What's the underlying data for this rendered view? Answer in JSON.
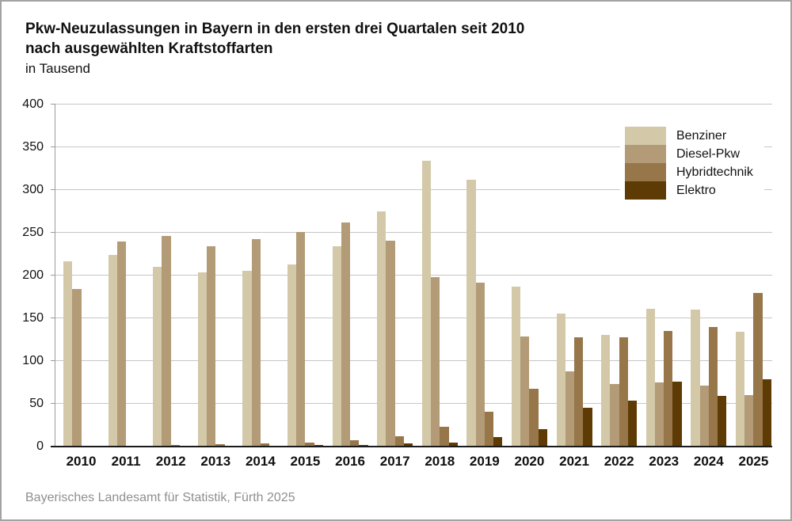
{
  "title": {
    "line1": "Pkw-Neuzulassungen in Bayern in den ersten drei Quartalen seit 2010",
    "line2": "nach ausgewählten Kraftstoffarten",
    "unit_line": "in Tausend"
  },
  "footer": "Bayerisches Landesamt für Statistik, Fürth 2025",
  "colors": {
    "benziner": "#d3c9a9",
    "diesel": "#b29b76",
    "hybrid": "#97764a",
    "elektro": "#5e3a04",
    "gridline": "#c6c6c6",
    "axis": "#9a9a9a",
    "baseline": "#1a1a1a",
    "footer_text": "#8f8f8f"
  },
  "chart_data": {
    "type": "bar",
    "title": "Pkw-Neuzulassungen in Bayern in den ersten drei Quartalen seit 2010 nach ausgewählten Kraftstoffarten",
    "subtitle": "in Tausend",
    "xlabel": "",
    "ylabel": "in Tausend",
    "ylim": [
      0,
      400
    ],
    "ytick_step": 50,
    "yticks": [
      0,
      50,
      100,
      150,
      200,
      250,
      300,
      350,
      400
    ],
    "grid": true,
    "legend_position": "top-right",
    "categories": [
      "2010",
      "2011",
      "2012",
      "2013",
      "2014",
      "2015",
      "2016",
      "2017",
      "2018",
      "2019",
      "2020",
      "2021",
      "2022",
      "2023",
      "2024",
      "2025"
    ],
    "series": [
      {
        "name": "Benziner",
        "color": "#d3c9a9",
        "values": [
          217,
          224,
          210,
          204,
          206,
          213,
          234,
          275,
          334,
          312,
          187,
          156,
          131,
          161,
          160,
          134
        ]
      },
      {
        "name": "Diesel-Pkw",
        "color": "#b29b76",
        "values": [
          184,
          240,
          246,
          234,
          243,
          251,
          262,
          241,
          198,
          192,
          129,
          88,
          73,
          75,
          71,
          60
        ]
      },
      {
        "name": "Hybridtechnik",
        "color": "#97764a",
        "values": [
          null,
          null,
          2,
          3,
          4,
          5,
          7,
          12,
          23,
          41,
          68,
          128,
          128,
          135,
          140,
          180
        ]
      },
      {
        "name": "Elektro",
        "color": "#5e3a04",
        "values": [
          null,
          null,
          null,
          null,
          1,
          2,
          2,
          4,
          5,
          11,
          20,
          45,
          54,
          76,
          59,
          79
        ]
      }
    ]
  }
}
